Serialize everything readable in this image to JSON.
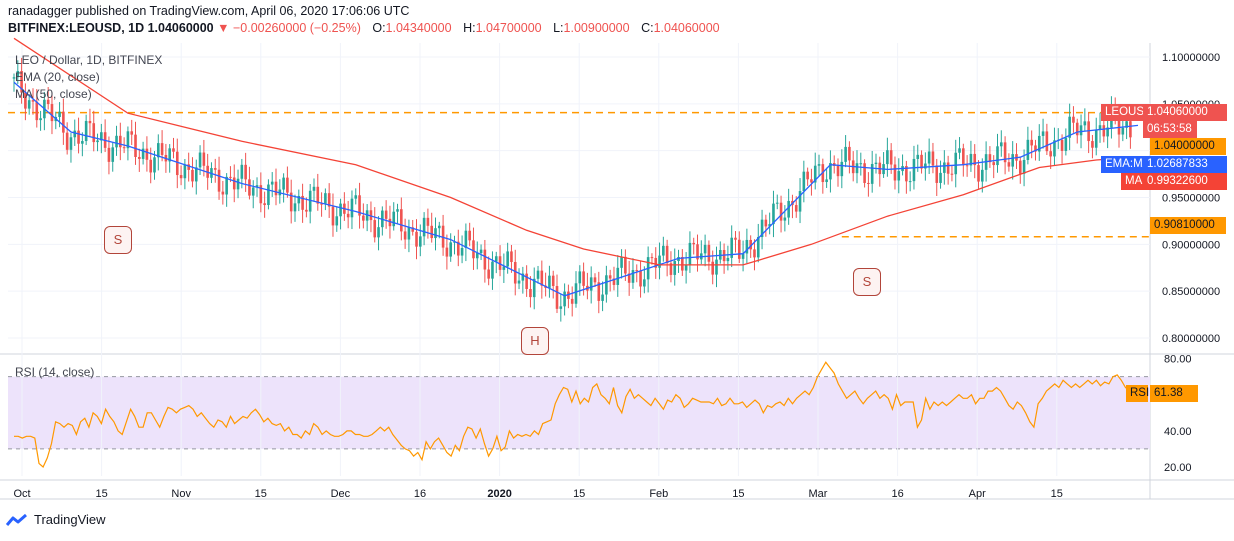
{
  "header": {
    "publish_line": "ranadagger published on TradingView.com, April 06, 2020 17:06:06 UTC",
    "symbol_line": "BITFINEX:LEOUSD, 1D 1.04060000",
    "change": "▼ −0.00260000 (−0.25%)",
    "ohlc": [
      {
        "label": "O:",
        "value": "1.04340000"
      },
      {
        "label": "H:",
        "value": "1.04700000"
      },
      {
        "label": "L:",
        "value": "1.00900000"
      },
      {
        "label": "C:",
        "value": "1.04060000"
      }
    ]
  },
  "legend": {
    "title": "LEO / Dollar, 1D, BITFINEX",
    "ema": "EMA (20, close)",
    "ma": "MA (50, close)",
    "rsi": "RSI (14, close)"
  },
  "price_labels": {
    "symbol": "LEOUSD",
    "price": "1.04060000",
    "countdown": "06:53:58",
    "level1": "1.04000000",
    "ema_name": "EMA:MA",
    "ema_value": "1.02687833",
    "ma_name": "MA",
    "ma_value": "0.99322600",
    "level2": "0.90810000",
    "rsi_name": "RSI",
    "rsi_value": "61.38"
  },
  "patterns": {
    "left_shoulder": "S",
    "head": "H",
    "right_shoulder": "S"
  },
  "footer": {
    "brand": "TradingView"
  },
  "colors": {
    "up": "#26a69a",
    "down": "#ef5350",
    "ema": "#2962ff",
    "ma": "#f44336",
    "level": "#ff9800",
    "rsi": "#ff9800",
    "rsi_band": "#ede3fb"
  },
  "chart_data": [
    {
      "type": "candlestick",
      "title": "LEO / Dollar, 1D, BITFINEX",
      "x_ticks": [
        "Oct",
        "15",
        "Nov",
        "15",
        "Dec",
        "16",
        "2020",
        "15",
        "Feb",
        "15",
        "Mar",
        "16",
        "Apr",
        "15"
      ],
      "y_ticks": [
        "1.10000000",
        "1.05000000",
        "1.00000000",
        "0.95000000",
        "0.90000000",
        "0.85000000",
        "0.80000000"
      ],
      "ylim": [
        0.785,
        1.115
      ],
      "horizontal_levels": [
        1.0406,
        0.9081
      ],
      "series": [
        {
          "name": "EMA (20, close)",
          "points": [
            [
              0,
              1.073
            ],
            [
              15,
              1.02
            ],
            [
              30,
              1.005
            ],
            [
              60,
              0.965
            ],
            [
              90,
              0.935
            ],
            [
              115,
              0.905
            ],
            [
              145,
              0.845
            ],
            [
              160,
              0.865
            ],
            [
              175,
              0.885
            ],
            [
              192,
              0.89
            ],
            [
              215,
              0.985
            ],
            [
              230,
              0.98
            ],
            [
              250,
              0.985
            ],
            [
              265,
              0.993
            ],
            [
              280,
              1.02
            ],
            [
              296,
              1.027
            ]
          ]
        },
        {
          "name": "MA (50, close)",
          "points": [
            [
              0,
              1.12
            ],
            [
              30,
              1.04
            ],
            [
              60,
              1.01
            ],
            [
              90,
              0.985
            ],
            [
              115,
              0.95
            ],
            [
              135,
              0.915
            ],
            [
              150,
              0.895
            ],
            [
              170,
              0.878
            ],
            [
              192,
              0.878
            ],
            [
              210,
              0.9
            ],
            [
              230,
              0.93
            ],
            [
              250,
              0.953
            ],
            [
              270,
              0.982
            ],
            [
              285,
              0.99
            ],
            [
              296,
              0.9932
            ]
          ]
        }
      ]
    },
    {
      "type": "line",
      "title": "RSI (14, close)",
      "y_ticks": [
        "80.00",
        "40.00",
        "20.00"
      ],
      "ylim": [
        15,
        82
      ],
      "band": [
        30,
        70
      ],
      "series": [
        {
          "name": "RSI (14, close)",
          "values": [
            37,
            37,
            36,
            37,
            37,
            36,
            22,
            20,
            25,
            33,
            45,
            44,
            42,
            44,
            43,
            38,
            45,
            47,
            42,
            50,
            48,
            44,
            52,
            48,
            45,
            40,
            38,
            45,
            52,
            48,
            42,
            42,
            50,
            50,
            46,
            42,
            48,
            53,
            52,
            50,
            52,
            53,
            54,
            52,
            48,
            50,
            47,
            44,
            42,
            46,
            45,
            42,
            48,
            44,
            46,
            48,
            47,
            50,
            52,
            49,
            45,
            47,
            44,
            43,
            44,
            40,
            42,
            38,
            38,
            36,
            40,
            38,
            44,
            42,
            38,
            40,
            38,
            37,
            37,
            38,
            40,
            40,
            38,
            38,
            37,
            37,
            38,
            40,
            42,
            40,
            42,
            38,
            35,
            32,
            30,
            29,
            26,
            28,
            24,
            34,
            30,
            34,
            36,
            32,
            28,
            26,
            32,
            29,
            37,
            42,
            41,
            36,
            41,
            33,
            26,
            30,
            37,
            29,
            31,
            40,
            36,
            38,
            37,
            38,
            37,
            40,
            38,
            44,
            45,
            46,
            55,
            60,
            64,
            63,
            56,
            62,
            55,
            58,
            56,
            64,
            66,
            60,
            58,
            55,
            64,
            54,
            50,
            59,
            63,
            58,
            60,
            58,
            56,
            54,
            58,
            55,
            52,
            57,
            56,
            60,
            58,
            53,
            55,
            58,
            57,
            56,
            56,
            56,
            55,
            58,
            54,
            55,
            58,
            55,
            55,
            56,
            53,
            55,
            57,
            55,
            50,
            54,
            53,
            55,
            56,
            54,
            58,
            55,
            58,
            60,
            62,
            60,
            64,
            70,
            74,
            78,
            75,
            72,
            66,
            62,
            58,
            60,
            62,
            58,
            55,
            58,
            60,
            62,
            58,
            60,
            58,
            52,
            60,
            54,
            56,
            56,
            56,
            42,
            46,
            58,
            52,
            56,
            54,
            56,
            54,
            56,
            58,
            60,
            58,
            58,
            60,
            55,
            58,
            58,
            62,
            62,
            64,
            62,
            58,
            54,
            52,
            56,
            54,
            50,
            45,
            42,
            55,
            58,
            62,
            64,
            66,
            64,
            68,
            66,
            64,
            66,
            64,
            66,
            68,
            66,
            68,
            65,
            67,
            66,
            70,
            71,
            68,
            64,
            62,
            62,
            61.38
          ]
        }
      ]
    }
  ]
}
